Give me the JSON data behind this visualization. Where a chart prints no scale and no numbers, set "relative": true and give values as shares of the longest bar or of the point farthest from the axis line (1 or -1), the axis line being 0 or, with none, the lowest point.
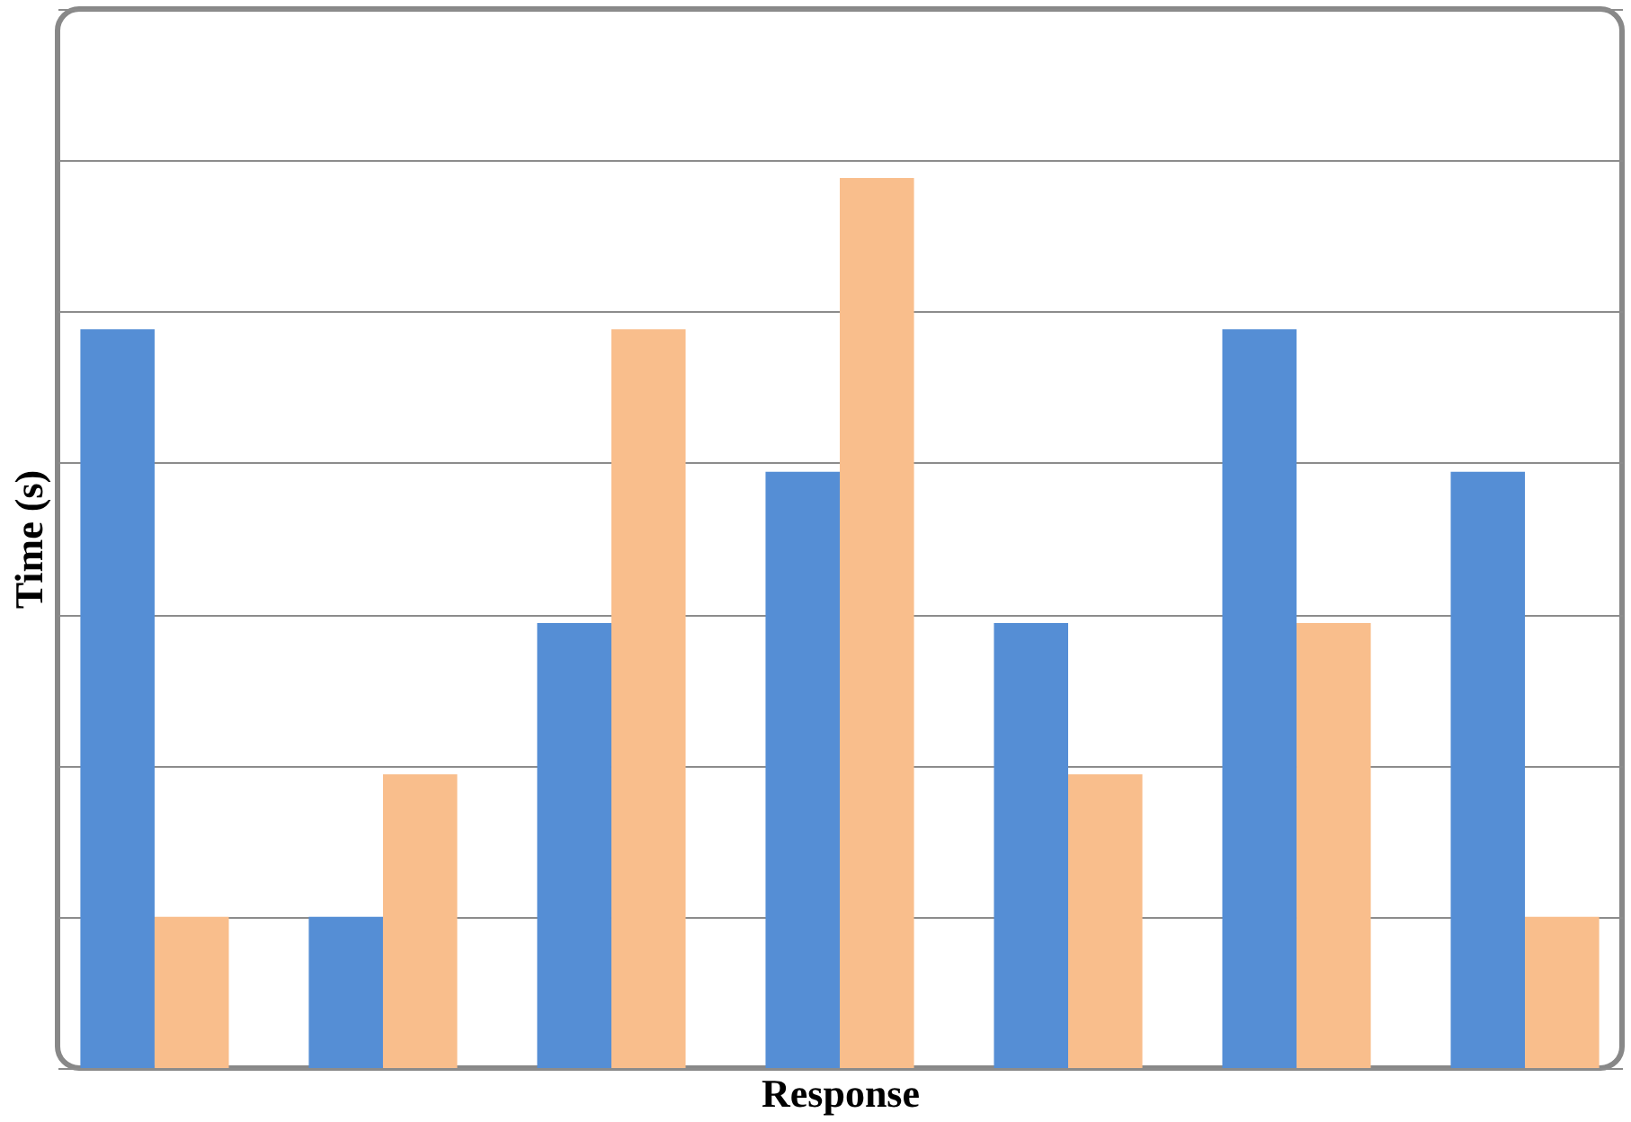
{
  "chart_data": {
    "type": "bar",
    "xlabel": "Response",
    "ylabel": "Time (s)",
    "relative": true,
    "grid": "y",
    "legend": false,
    "tick_labels": false,
    "categories": [
      null,
      null,
      null,
      null,
      null,
      null,
      null
    ],
    "series": [
      {
        "color": "#558ed5",
        "values": [
          0.83,
          0.17,
          0.5,
          0.67,
          0.5,
          0.83,
          0.67
        ]
      },
      {
        "color": "#f9be8c",
        "values": [
          0.17,
          0.33,
          0.83,
          1,
          0.33,
          0.5,
          0.17
        ]
      }
    ]
  }
}
